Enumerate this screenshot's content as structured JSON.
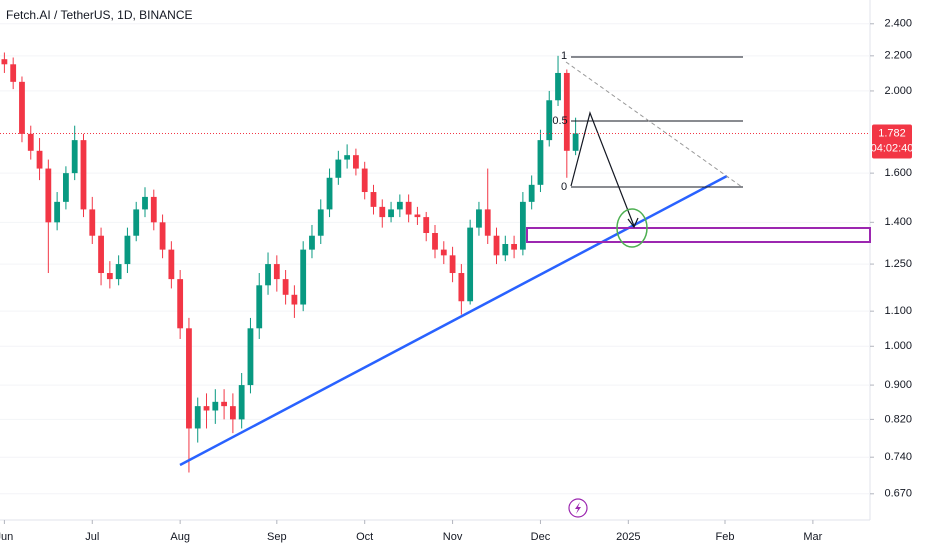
{
  "chart_data": {
    "type": "candlestick",
    "title": "Fetch.AI / TetherUS, 1D, BINANCE",
    "log_scale": true,
    "up_color": "#089981",
    "down_color": "#f23645",
    "ylim": [
      0.624,
      2.56
    ],
    "yticks": [
      {
        "value": 2.4,
        "label": "2.400"
      },
      {
        "value": 2.2,
        "label": "2.200"
      },
      {
        "value": 2.0,
        "label": "2.000"
      },
      {
        "value": 1.6,
        "label": "1.600"
      },
      {
        "value": 1.4,
        "label": "1.400"
      },
      {
        "value": 1.25,
        "label": "1.250"
      },
      {
        "value": 1.1,
        "label": "1.100"
      },
      {
        "value": 1.0,
        "label": "1.000"
      },
      {
        "value": 0.9,
        "label": "0.900"
      },
      {
        "value": 0.82,
        "label": "0.820"
      },
      {
        "value": 0.74,
        "label": "0.740"
      },
      {
        "value": 0.67,
        "label": "0.670"
      }
    ],
    "last_price": 1.782,
    "countdown": "04:02:40",
    "fib_labels": [
      "1",
      "0.5",
      "0"
    ],
    "categories": [
      "Jun",
      null,
      null,
      null,
      null,
      null,
      null,
      null,
      null,
      null,
      "Jul",
      null,
      null,
      null,
      null,
      null,
      null,
      null,
      null,
      null,
      "Aug",
      null,
      null,
      null,
      null,
      null,
      null,
      null,
      null,
      null,
      null,
      "Sep",
      null,
      null,
      null,
      null,
      null,
      null,
      null,
      null,
      null,
      "Oct",
      null,
      null,
      null,
      null,
      null,
      null,
      null,
      null,
      null,
      "Nov",
      null,
      null,
      null,
      null,
      null,
      null,
      null,
      null,
      null,
      "Dec",
      null,
      null,
      null,
      null,
      null,
      null,
      null,
      null,
      null,
      "2025",
      null,
      null,
      null,
      null,
      null,
      null,
      null,
      null,
      null,
      null,
      "Feb",
      null,
      null,
      null,
      null,
      null,
      null,
      null,
      null,
      null,
      "Mar",
      null,
      null,
      null,
      null,
      null,
      null
    ],
    "open": [
      2.18,
      2.15,
      2.05,
      1.78,
      1.7,
      1.62,
      1.4,
      1.48,
      1.6,
      1.75,
      1.45,
      1.35,
      1.22,
      1.2,
      1.25,
      1.35,
      1.45,
      1.5,
      1.4,
      1.3,
      1.2,
      1.05,
      0.8,
      0.85,
      0.84,
      0.86,
      0.85,
      0.82,
      0.9,
      1.05,
      1.18,
      1.25,
      1.2,
      1.15,
      1.12,
      1.3,
      1.35,
      1.45,
      1.58,
      1.66,
      1.68,
      1.62,
      1.52,
      1.46,
      1.42,
      1.45,
      1.48,
      1.43,
      1.42,
      1.36,
      1.3,
      1.28,
      1.22,
      1.13,
      1.38,
      1.45,
      1.35,
      1.28,
      1.32,
      1.3,
      1.48,
      1.55,
      1.75,
      1.95,
      2.1,
      1.7,
      null,
      null,
      null,
      null,
      null,
      null,
      null,
      null,
      null,
      null,
      null,
      null,
      null,
      null,
      null,
      null,
      null,
      null,
      null,
      null,
      null,
      null,
      null,
      null,
      null,
      null,
      null,
      null,
      null,
      null,
      null,
      null,
      null
    ],
    "high": [
      2.22,
      2.19,
      2.08,
      1.82,
      1.76,
      1.66,
      1.52,
      1.63,
      1.82,
      1.78,
      1.5,
      1.38,
      1.26,
      1.28,
      1.38,
      1.48,
      1.54,
      1.53,
      1.43,
      1.33,
      1.23,
      1.08,
      0.87,
      0.88,
      0.89,
      0.89,
      0.88,
      0.93,
      1.08,
      1.22,
      1.29,
      1.28,
      1.23,
      1.18,
      1.33,
      1.39,
      1.49,
      1.62,
      1.7,
      1.73,
      1.71,
      1.65,
      1.55,
      1.49,
      1.48,
      1.51,
      1.51,
      1.46,
      1.44,
      1.39,
      1.33,
      1.31,
      1.25,
      1.41,
      1.48,
      1.62,
      1.38,
      1.35,
      1.35,
      1.52,
      1.59,
      1.8,
      2.0,
      2.2,
      2.12,
      1.86,
      null,
      null,
      null,
      null,
      null,
      null,
      null,
      null,
      null,
      null,
      null,
      null,
      null,
      null,
      null,
      null,
      null,
      null,
      null,
      null,
      null,
      null,
      null,
      null,
      null,
      null,
      null,
      null,
      null,
      null,
      null,
      null,
      null
    ],
    "low": [
      2.1,
      2.01,
      1.74,
      1.66,
      1.57,
      1.22,
      1.37,
      1.45,
      1.57,
      1.42,
      1.32,
      1.18,
      1.17,
      1.18,
      1.22,
      1.33,
      1.42,
      1.37,
      1.27,
      1.17,
      1.02,
      0.71,
      0.77,
      0.8,
      0.81,
      0.82,
      0.79,
      0.8,
      0.88,
      1.02,
      1.15,
      1.16,
      1.12,
      1.08,
      1.1,
      1.27,
      1.32,
      1.42,
      1.55,
      1.62,
      1.59,
      1.49,
      1.43,
      1.38,
      1.4,
      1.42,
      1.4,
      1.39,
      1.33,
      1.27,
      1.25,
      1.19,
      1.09,
      1.12,
      1.35,
      1.32,
      1.25,
      1.26,
      1.27,
      1.28,
      1.45,
      1.52,
      1.72,
      1.92,
      1.58,
      1.68,
      null,
      null,
      null,
      null,
      null,
      null,
      null,
      null,
      null,
      null,
      null,
      null,
      null,
      null,
      null,
      null,
      null,
      null,
      null,
      null,
      null,
      null,
      null,
      null,
      null,
      null,
      null,
      null,
      null,
      null,
      null,
      null,
      null
    ],
    "close": [
      2.15,
      2.05,
      1.78,
      1.7,
      1.62,
      1.4,
      1.48,
      1.6,
      1.75,
      1.45,
      1.35,
      1.22,
      1.2,
      1.25,
      1.35,
      1.45,
      1.5,
      1.4,
      1.3,
      1.2,
      1.05,
      0.8,
      0.85,
      0.84,
      0.86,
      0.85,
      0.82,
      0.9,
      1.05,
      1.18,
      1.25,
      1.2,
      1.15,
      1.12,
      1.3,
      1.35,
      1.45,
      1.58,
      1.66,
      1.68,
      1.62,
      1.52,
      1.46,
      1.42,
      1.45,
      1.48,
      1.43,
      1.42,
      1.36,
      1.3,
      1.28,
      1.22,
      1.13,
      1.38,
      1.45,
      1.35,
      1.28,
      1.32,
      1.3,
      1.48,
      1.55,
      1.75,
      1.95,
      2.1,
      1.7,
      1.782,
      null,
      null,
      null,
      null,
      null,
      null,
      null,
      null,
      null,
      null,
      null,
      null,
      null,
      null,
      null,
      null,
      null,
      null,
      null,
      null,
      null,
      null,
      null,
      null,
      null,
      null,
      null,
      null,
      null,
      null,
      null,
      null,
      null
    ]
  }
}
